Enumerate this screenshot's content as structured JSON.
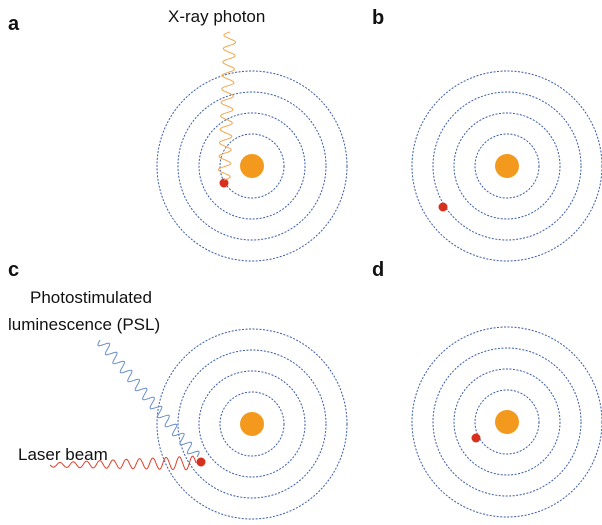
{
  "panels": [
    {
      "label": "a"
    },
    {
      "label": "b"
    },
    {
      "label": "c"
    },
    {
      "label": "d"
    }
  ],
  "annotations": {
    "xray": "X-ray photon",
    "psl": [
      "Photostimulated",
      "luminescence (PSL)"
    ],
    "laser": "Laser beam"
  }
}
